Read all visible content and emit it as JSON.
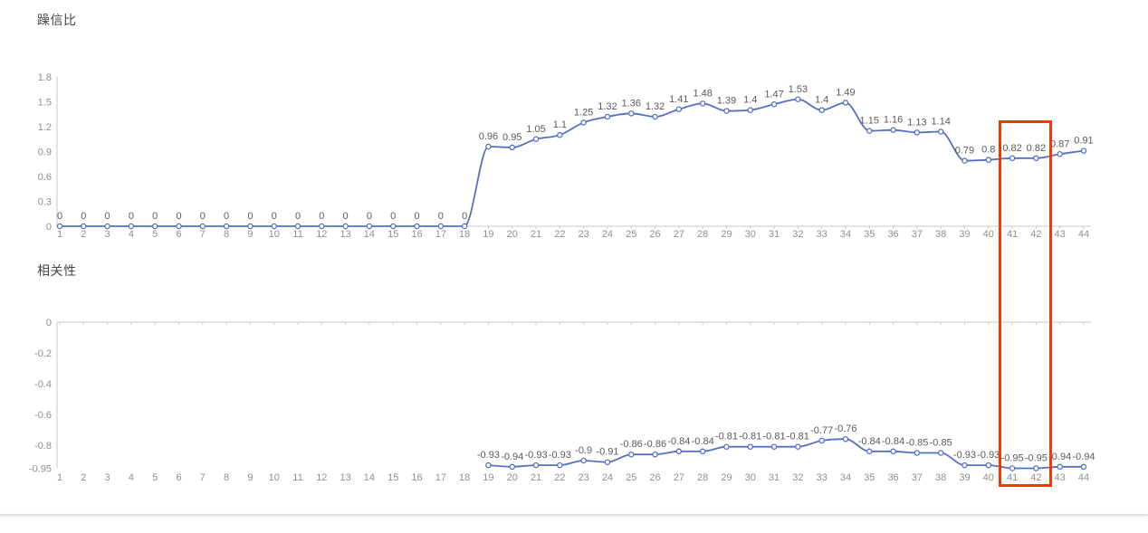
{
  "highlight": {
    "from_category": "41",
    "to_category": "42",
    "color": "#ff3300"
  },
  "style": {
    "line_color": "#5470c6",
    "point_fill": "#ffffff",
    "data_label_color": "#595959",
    "tick_label_color": "#8f8f8f",
    "axis_color": "#c9c9c9",
    "title_color": "#464646"
  },
  "chart_data": [
    {
      "type": "line",
      "title": "躁信比",
      "xlabel": "",
      "ylabel": "",
      "grid": false,
      "legend_position": "none",
      "smooth": true,
      "ylim": [
        0,
        1.8
      ],
      "y_tick_values": [
        0,
        0.3,
        0.6,
        0.9,
        1.2,
        1.5,
        1.8
      ],
      "y_tick_labels": [
        "0",
        "0.3",
        "0.6",
        "0.9",
        "1.2",
        "1.5",
        "1.8"
      ],
      "categories": [
        "1",
        "2",
        "3",
        "4",
        "5",
        "6",
        "7",
        "8",
        "9",
        "10",
        "11",
        "12",
        "13",
        "14",
        "15",
        "16",
        "17",
        "18",
        "19",
        "20",
        "21",
        "22",
        "23",
        "24",
        "25",
        "26",
        "27",
        "28",
        "29",
        "30",
        "31",
        "32",
        "33",
        "34",
        "35",
        "36",
        "37",
        "38",
        "39",
        "40",
        "41",
        "42",
        "43",
        "44"
      ],
      "values": [
        0,
        0,
        0,
        0,
        0,
        0,
        0,
        0,
        0,
        0,
        0,
        0,
        0,
        0,
        0,
        0,
        0,
        0,
        0.96,
        0.95,
        1.05,
        1.1,
        1.25,
        1.32,
        1.36,
        1.32,
        1.41,
        1.48,
        1.39,
        1.4,
        1.47,
        1.53,
        1.4,
        1.49,
        1.15,
        1.16,
        1.13,
        1.14,
        0.79,
        0.8,
        0.82,
        0.82,
        0.87,
        0.91
      ],
      "point_labels": [
        "0",
        "0",
        "0",
        "0",
        "0",
        "0",
        "0",
        "0",
        "0",
        "0",
        "0",
        "0",
        "0",
        "0",
        "0",
        "0",
        "0",
        "0",
        "0.96",
        "0.95",
        "1.05",
        "1.1",
        "1.25",
        "1.32",
        "1.36",
        "1.32",
        "1.41",
        "1.48",
        "1.39",
        "1.4",
        "1.47",
        "1.53",
        "1.4",
        "1.49",
        "1.15",
        "1.16",
        "1.13",
        "1.14",
        "0.79",
        "0.8",
        "0.82",
        "0.82",
        "0.87",
        "0.91"
      ]
    },
    {
      "type": "line",
      "title": "相关性",
      "xlabel": "",
      "ylabel": "",
      "grid": false,
      "legend_position": "none",
      "smooth": true,
      "ylim": [
        -0.95,
        0
      ],
      "y_tick_values": [
        0,
        -0.2,
        -0.4,
        -0.6,
        -0.8,
        -0.95
      ],
      "y_tick_labels": [
        "0",
        "-0.2",
        "-0.4",
        "-0.6",
        "-0.8",
        "-0.95"
      ],
      "categories": [
        "1",
        "2",
        "3",
        "4",
        "5",
        "6",
        "7",
        "8",
        "9",
        "10",
        "11",
        "12",
        "13",
        "14",
        "15",
        "16",
        "17",
        "18",
        "19",
        "20",
        "21",
        "22",
        "23",
        "24",
        "25",
        "26",
        "27",
        "28",
        "29",
        "30",
        "31",
        "32",
        "33",
        "34",
        "35",
        "36",
        "37",
        "38",
        "39",
        "40",
        "41",
        "42",
        "43",
        "44"
      ],
      "values": [
        null,
        null,
        null,
        null,
        null,
        null,
        null,
        null,
        null,
        null,
        null,
        null,
        null,
        null,
        null,
        null,
        null,
        null,
        -0.93,
        -0.94,
        -0.93,
        -0.93,
        -0.9,
        -0.91,
        -0.86,
        -0.86,
        -0.84,
        -0.84,
        -0.81,
        -0.81,
        -0.81,
        -0.81,
        -0.77,
        -0.76,
        -0.84,
        -0.84,
        -0.85,
        -0.85,
        -0.93,
        -0.93,
        -0.95,
        -0.95,
        -0.94,
        -0.94
      ],
      "point_labels": [
        null,
        null,
        null,
        null,
        null,
        null,
        null,
        null,
        null,
        null,
        null,
        null,
        null,
        null,
        null,
        null,
        null,
        null,
        "-0.93",
        "-0.94",
        "-0.93",
        "-0.93",
        "-0.9",
        "-0.91",
        "-0.86",
        "-0.86",
        "-0.84",
        "-0.84",
        "-0.81",
        "-0.81",
        "-0.81",
        "-0.81",
        "-0.77",
        "-0.76",
        "-0.84",
        "-0.84",
        "-0.85",
        "-0.85",
        "-0.93",
        "-0.93",
        "-0.95",
        "-0.95",
        "-0.94",
        "-0.94"
      ]
    }
  ]
}
